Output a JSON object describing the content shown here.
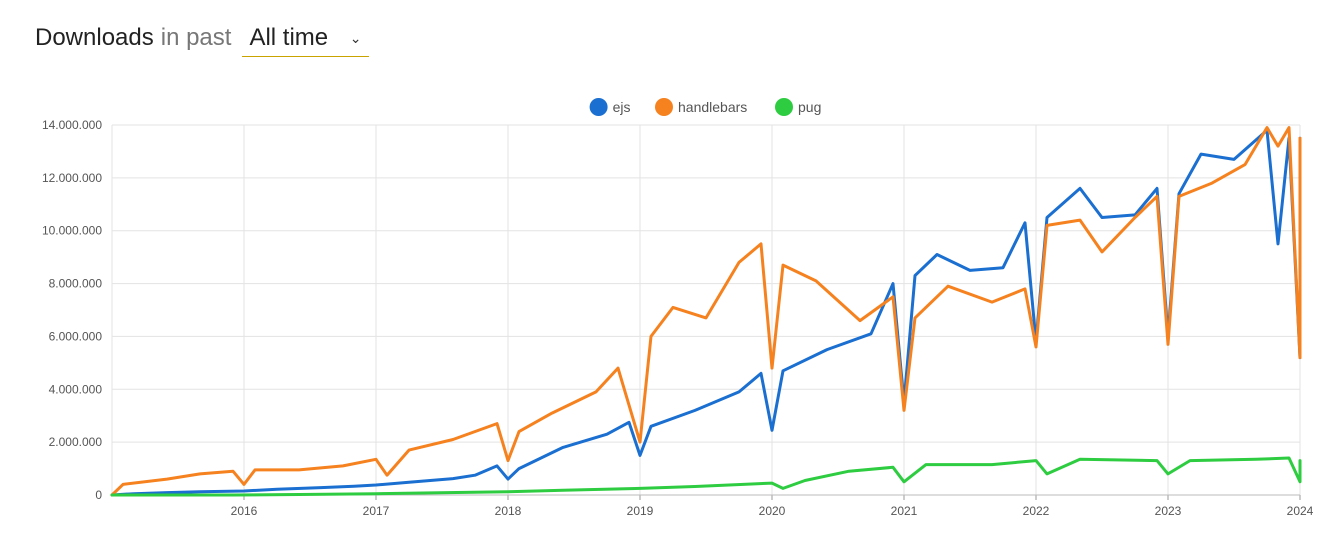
{
  "header": {
    "title_strong": "Downloads",
    "title_light": "in past",
    "range_select": {
      "value": "All time",
      "caret": "⌄"
    }
  },
  "chart_data": {
    "type": "line",
    "title": "",
    "xlabel": "",
    "ylabel": "",
    "ylim": [
      0,
      14000000
    ],
    "xlim": [
      "2015-01",
      "2024-01"
    ],
    "x_ticks": [
      "2016",
      "2017",
      "2018",
      "2019",
      "2020",
      "2021",
      "2022",
      "2023",
      "2024"
    ],
    "y_ticks": [
      "0",
      "2.000.000",
      "4.000.000",
      "6.000.000",
      "8.000.000",
      "10.000.000",
      "12.000.000",
      "14.000.000"
    ],
    "grid": true,
    "legend_position": "top-center",
    "series": [
      {
        "name": "ejs",
        "color": "#1a6fd0",
        "points": [
          [
            "2015-01",
            0
          ],
          [
            "2015-03",
            50000
          ],
          [
            "2015-06",
            90000
          ],
          [
            "2015-09",
            120000
          ],
          [
            "2016-01",
            150000
          ],
          [
            "2016-04",
            220000
          ],
          [
            "2016-08",
            280000
          ],
          [
            "2016-11",
            330000
          ],
          [
            "2017-01",
            380000
          ],
          [
            "2017-04",
            480000
          ],
          [
            "2017-08",
            620000
          ],
          [
            "2017-10",
            750000
          ],
          [
            "2017-12",
            1100000
          ],
          [
            "2018-01",
            600000
          ],
          [
            "2018-02",
            1000000
          ],
          [
            "2018-06",
            1800000
          ],
          [
            "2018-10",
            2300000
          ],
          [
            "2018-12",
            2750000
          ],
          [
            "2019-01",
            1500000
          ],
          [
            "2019-02",
            2600000
          ],
          [
            "2019-06",
            3200000
          ],
          [
            "2019-10",
            3900000
          ],
          [
            "2019-12",
            4600000
          ],
          [
            "2020-01",
            2450000
          ],
          [
            "2020-02",
            4700000
          ],
          [
            "2020-06",
            5500000
          ],
          [
            "2020-10",
            6100000
          ],
          [
            "2020-12",
            8000000
          ],
          [
            "2021-01",
            3500000
          ],
          [
            "2021-02",
            8300000
          ],
          [
            "2021-04",
            9100000
          ],
          [
            "2021-07",
            8500000
          ],
          [
            "2021-10",
            8600000
          ],
          [
            "2021-12",
            10300000
          ],
          [
            "2022-01",
            5800000
          ],
          [
            "2022-02",
            10500000
          ],
          [
            "2022-05",
            11600000
          ],
          [
            "2022-07",
            10500000
          ],
          [
            "2022-10",
            10600000
          ],
          [
            "2022-12",
            11600000
          ],
          [
            "2023-01",
            6000000
          ],
          [
            "2023-02",
            11400000
          ],
          [
            "2023-04",
            12900000
          ],
          [
            "2023-07",
            12700000
          ],
          [
            "2023-10",
            13800000
          ],
          [
            "2023-11",
            9500000
          ],
          [
            "2023-12",
            13500000
          ],
          [
            "2024-01",
            5200000
          ],
          [
            "2024-01",
            13500000
          ]
        ]
      },
      {
        "name": "handlebars",
        "color": "#f5821f",
        "points": [
          [
            "2015-01",
            0
          ],
          [
            "2015-02",
            400000
          ],
          [
            "2015-06",
            600000
          ],
          [
            "2015-09",
            800000
          ],
          [
            "2015-12",
            900000
          ],
          [
            "2016-01",
            400000
          ],
          [
            "2016-02",
            950000
          ],
          [
            "2016-06",
            950000
          ],
          [
            "2016-10",
            1100000
          ],
          [
            "2017-01",
            1350000
          ],
          [
            "2017-02",
            750000
          ],
          [
            "2017-04",
            1700000
          ],
          [
            "2017-08",
            2100000
          ],
          [
            "2017-12",
            2700000
          ],
          [
            "2018-01",
            1300000
          ],
          [
            "2018-02",
            2400000
          ],
          [
            "2018-05",
            3100000
          ],
          [
            "2018-09",
            3900000
          ],
          [
            "2018-11",
            4800000
          ],
          [
            "2019-01",
            2000000
          ],
          [
            "2019-02",
            6000000
          ],
          [
            "2019-04",
            7100000
          ],
          [
            "2019-07",
            6700000
          ],
          [
            "2019-10",
            8800000
          ],
          [
            "2019-12",
            9500000
          ],
          [
            "2020-01",
            4800000
          ],
          [
            "2020-02",
            8700000
          ],
          [
            "2020-05",
            8100000
          ],
          [
            "2020-09",
            6600000
          ],
          [
            "2020-12",
            7500000
          ],
          [
            "2021-01",
            3200000
          ],
          [
            "2021-02",
            6700000
          ],
          [
            "2021-05",
            7900000
          ],
          [
            "2021-09",
            7300000
          ],
          [
            "2021-12",
            7800000
          ],
          [
            "2022-01",
            5600000
          ],
          [
            "2022-02",
            10200000
          ],
          [
            "2022-05",
            10400000
          ],
          [
            "2022-07",
            9200000
          ],
          [
            "2022-10",
            10500000
          ],
          [
            "2022-12",
            11300000
          ],
          [
            "2023-01",
            5700000
          ],
          [
            "2023-02",
            11300000
          ],
          [
            "2023-05",
            11800000
          ],
          [
            "2023-08",
            12500000
          ],
          [
            "2023-10",
            13900000
          ],
          [
            "2023-11",
            13200000
          ],
          [
            "2023-12",
            13900000
          ],
          [
            "2024-01",
            5200000
          ],
          [
            "2024-01",
            13500000
          ]
        ]
      },
      {
        "name": "pug",
        "color": "#2ecc40",
        "points": [
          [
            "2015-01",
            0
          ],
          [
            "2015-12",
            0
          ],
          [
            "2016-06",
            20000
          ],
          [
            "2017-01",
            50000
          ],
          [
            "2017-06",
            80000
          ],
          [
            "2018-01",
            120000
          ],
          [
            "2018-06",
            180000
          ],
          [
            "2019-01",
            250000
          ],
          [
            "2019-06",
            320000
          ],
          [
            "2020-01",
            450000
          ],
          [
            "2020-02",
            250000
          ],
          [
            "2020-04",
            550000
          ],
          [
            "2020-08",
            900000
          ],
          [
            "2020-12",
            1050000
          ],
          [
            "2021-01",
            500000
          ],
          [
            "2021-03",
            1150000
          ],
          [
            "2021-09",
            1150000
          ],
          [
            "2022-01",
            1300000
          ],
          [
            "2022-02",
            800000
          ],
          [
            "2022-05",
            1350000
          ],
          [
            "2022-12",
            1300000
          ],
          [
            "2023-01",
            800000
          ],
          [
            "2023-03",
            1300000
          ],
          [
            "2023-09",
            1350000
          ],
          [
            "2023-12",
            1400000
          ],
          [
            "2024-01",
            500000
          ],
          [
            "2024-01",
            1300000
          ]
        ]
      }
    ]
  }
}
